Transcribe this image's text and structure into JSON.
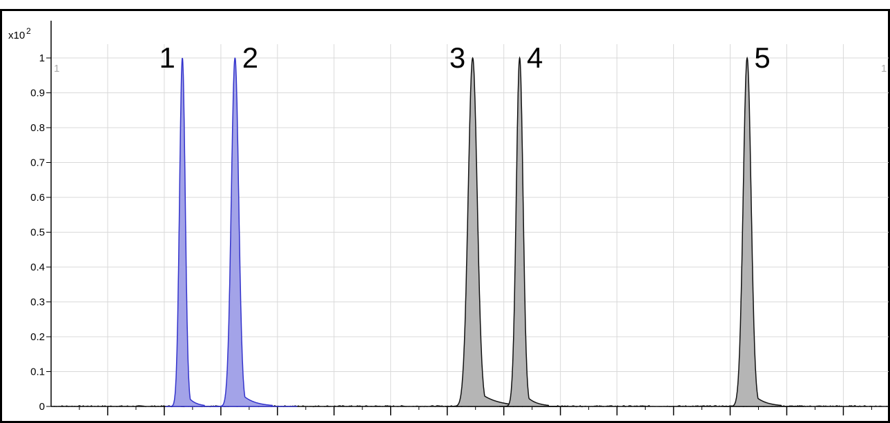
{
  "chart_data": {
    "type": "area",
    "title": "",
    "xlabel": "",
    "ylabel": "",
    "y_multiplier_label": "x10",
    "y_multiplier_exponent": "2",
    "ylim": [
      0,
      1
    ],
    "y_ticks": [
      "0",
      "0.1",
      "0.2",
      "0.3",
      "0.4",
      "0.5",
      "0.6",
      "0.7",
      "0.8",
      "0.9",
      "1"
    ],
    "x_tick_labels_visible": false,
    "xlim": [
      0,
      14.8
    ],
    "x_major_ticks": [
      1,
      2,
      3,
      4,
      5,
      6,
      7,
      8,
      9,
      10,
      11,
      12,
      13,
      14
    ],
    "grid": true,
    "corner_labels": {
      "left": "1",
      "right": "1"
    },
    "baseline_noise": 0.004,
    "series": [
      {
        "label": "1",
        "color": "#3333cc",
        "fill": "#a3a3e8",
        "apex": 2.32,
        "height": 1.0,
        "width": 0.1,
        "tail": 0.13
      },
      {
        "label": "2",
        "color": "#3333cc",
        "fill": "#a3a3e8",
        "apex": 3.25,
        "height": 1.0,
        "width": 0.13,
        "tail": 0.22
      },
      {
        "label": "3",
        "color": "#111111",
        "fill": "#b5b5b5",
        "apex": 7.45,
        "height": 1.0,
        "width": 0.16,
        "tail": 0.3
      },
      {
        "label": "4",
        "color": "#111111",
        "fill": "#b5b5b5",
        "apex": 8.28,
        "height": 1.0,
        "width": 0.12,
        "tail": 0.17
      },
      {
        "label": "5",
        "color": "#111111",
        "fill": "#b5b5b5",
        "apex": 12.3,
        "height": 1.0,
        "width": 0.14,
        "tail": 0.2
      }
    ]
  }
}
